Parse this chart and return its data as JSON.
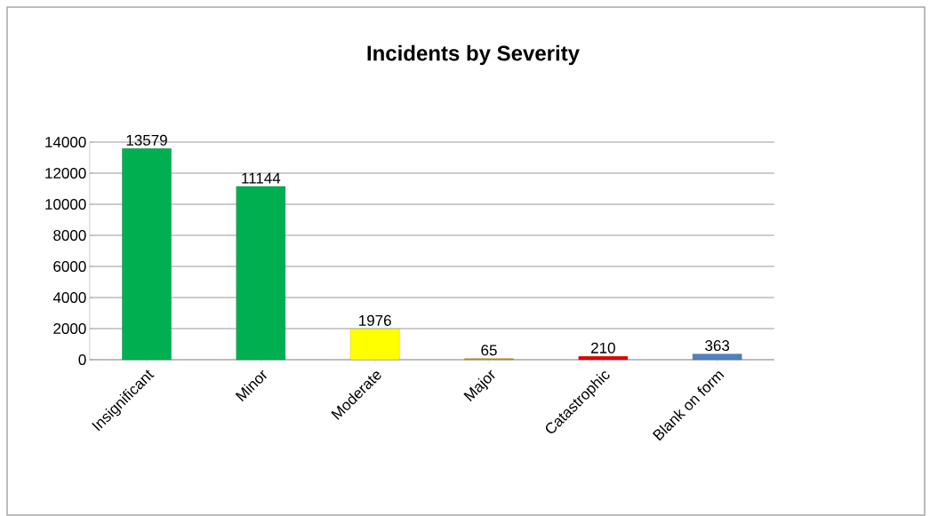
{
  "chart_data": {
    "type": "bar",
    "title": "Incidents by Severity",
    "categories": [
      "Insignificant",
      "Minor",
      "Moderate",
      "Major",
      "Catastrophic",
      "Blank on form"
    ],
    "values": [
      13579,
      11144,
      1976,
      65,
      210,
      363
    ],
    "colors": [
      "#00b050",
      "#00b050",
      "#ffff00",
      "#cc9900",
      "#e00000",
      "#4f81bd"
    ],
    "ylim": [
      0,
      14000
    ],
    "yticks": [
      0,
      2000,
      4000,
      6000,
      8000,
      10000,
      12000,
      14000
    ],
    "grid": "y",
    "data_labels": true
  }
}
